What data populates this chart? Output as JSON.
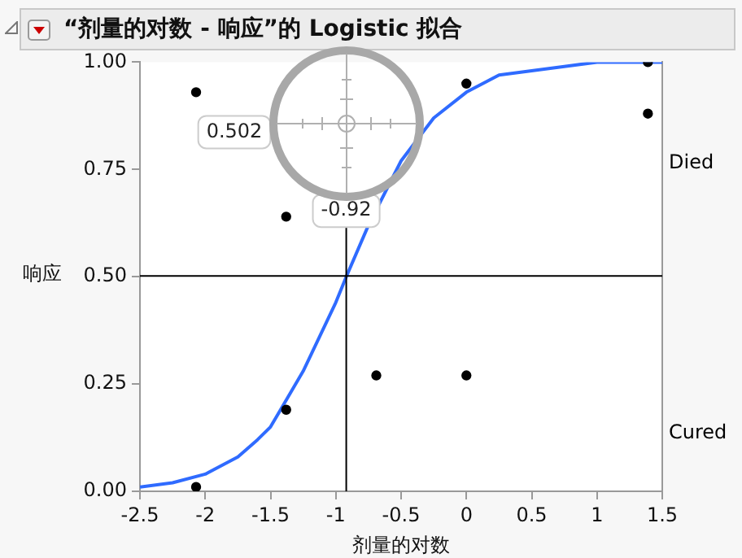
{
  "chart_data": {
    "type": "scatter",
    "title": "“剂量的对数 - 响应”的 Logistic 拟合",
    "xlabel": "剂量的对数",
    "ylabel": "响应",
    "xlim": [
      -2.5,
      1.5
    ],
    "xticks": [
      -2.5,
      -2,
      -1.5,
      -1,
      -0.5,
      0,
      0.5,
      1,
      1.5
    ],
    "ylim": [
      0,
      1
    ],
    "yticks": [
      {
        "value": 0,
        "label": "0.00"
      },
      {
        "value": 0.25,
        "label": "0.25"
      },
      {
        "value": 0.5,
        "label": "0.50"
      },
      {
        "value": 0.75,
        "label": "0.75"
      },
      {
        "value": 1,
        "label": "1.00"
      }
    ],
    "annotations": [
      "Died",
      "Cured",
      "0.502"
    ],
    "series": [
      {
        "type": "scatter",
        "color": "#000000",
        "marker": "circle",
        "x": [
          -2.07,
          -2.07,
          -1.38,
          -1.38,
          -0.69,
          0,
          0,
          1.39,
          1.39
        ],
        "values": [
          0.93,
          0.01,
          0.64,
          0.19,
          0.27,
          0.27,
          0.95,
          1.0,
          0.88
        ]
      },
      {
        "type": "line",
        "color": "#2f6bff",
        "marker": "none",
        "x": [
          -2.5,
          -2.25,
          -2,
          -1.75,
          -1.6,
          -1.5,
          -1.25,
          -1,
          -0.92,
          -0.75,
          -0.5,
          -0.25,
          0,
          0.25,
          0.5,
          0.75,
          1,
          1.5
        ],
        "values": [
          0.01,
          0.02,
          0.04,
          0.08,
          0.12,
          0.15,
          0.28,
          0.44,
          0.5,
          0.62,
          0.77,
          0.87,
          0.93,
          0.97,
          0.98,
          0.99,
          1.0,
          1.0
        ]
      }
    ],
    "ref_lines": [
      {
        "axis": "x",
        "value": -0.92,
        "label": "-0.92",
        "color": "#000000"
      },
      {
        "axis": "y",
        "value": 0.502,
        "color": "#000000"
      }
    ],
    "grid": false,
    "legend": false
  }
}
